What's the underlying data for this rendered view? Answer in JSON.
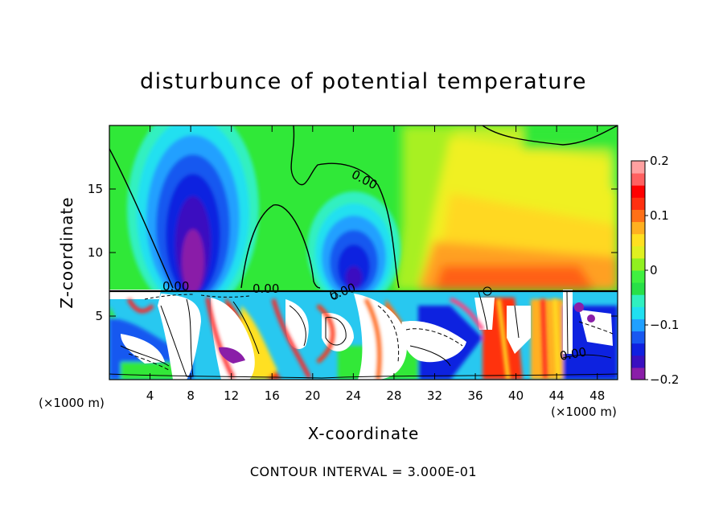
{
  "chart_data": {
    "type": "heatmap",
    "title": "disturbunce of potential temperature",
    "xlabel": "X-coordinate",
    "ylabel": "Z-coordinate",
    "x_unit_label": "(×1000 m)",
    "xlim": [
      0,
      50
    ],
    "ylim": [
      0,
      20
    ],
    "x_ticks": [
      4,
      8,
      12,
      16,
      20,
      24,
      28,
      32,
      36,
      40,
      44,
      48
    ],
    "y_ticks": [
      5,
      10,
      15
    ],
    "colorbar": {
      "range": [
        -0.2,
        0.2
      ],
      "tick_values": [
        0.2,
        0.1,
        0,
        -0.1,
        -0.2
      ],
      "tick_labels": [
        "0.2",
        "0.1",
        "0",
        "−0.1",
        "−0.2"
      ],
      "colors": [
        "#8a1ea8",
        "#3a10c0",
        "#1020e0",
        "#1858f0",
        "#20a0ff",
        "#20e0f0",
        "#30f0c0",
        "#28e048",
        "#40f040",
        "#90f020",
        "#e0f020",
        "#ffe020",
        "#ffb020",
        "#ff7018",
        "#ff3010",
        "#ff0000",
        "#ff6060",
        "#ffa0a0"
      ]
    },
    "contour_label": "0.00",
    "footer": "CONTOUR INTERVAL = 3.000E-01"
  }
}
